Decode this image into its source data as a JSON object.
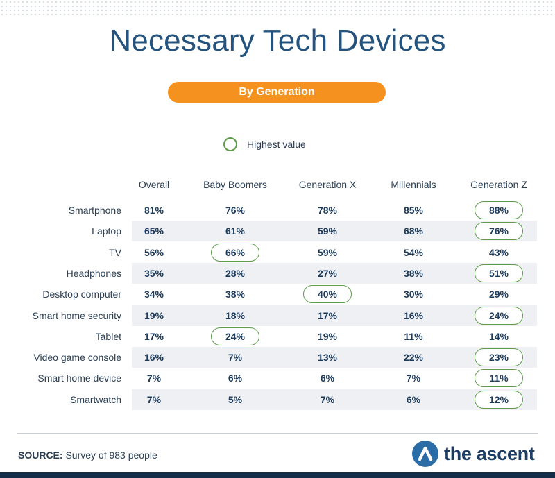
{
  "title": "Necessary Tech Devices",
  "subtitle": "By Generation",
  "legend": {
    "label": "Highest value"
  },
  "colors": {
    "accent": "#f5921f",
    "title": "#24537e",
    "highlight_ring": "#5e9c4c",
    "row_shade": "#eef0f4",
    "bottom_bar": "#142d49",
    "logo": "#2a6ca6"
  },
  "chart_data": {
    "type": "table",
    "title": "Necessary Tech Devices",
    "subtitle": "By Generation",
    "columns": [
      "Overall",
      "Baby Boomers",
      "Generation X",
      "Millennials",
      "Generation Z"
    ],
    "rows": [
      {
        "label": "Smartphone",
        "values": [
          "81%",
          "76%",
          "78%",
          "85%",
          "88%"
        ],
        "highlight": 4
      },
      {
        "label": "Laptop",
        "values": [
          "65%",
          "61%",
          "59%",
          "68%",
          "76%"
        ],
        "highlight": 4
      },
      {
        "label": "TV",
        "values": [
          "56%",
          "66%",
          "59%",
          "54%",
          "43%"
        ],
        "highlight": 1
      },
      {
        "label": "Headphones",
        "values": [
          "35%",
          "28%",
          "27%",
          "38%",
          "51%"
        ],
        "highlight": 4
      },
      {
        "label": "Desktop computer",
        "values": [
          "34%",
          "38%",
          "40%",
          "30%",
          "29%"
        ],
        "highlight": 2
      },
      {
        "label": "Smart home security",
        "values": [
          "19%",
          "18%",
          "17%",
          "16%",
          "24%"
        ],
        "highlight": 4
      },
      {
        "label": "Tablet",
        "values": [
          "17%",
          "24%",
          "19%",
          "11%",
          "14%"
        ],
        "highlight": 1
      },
      {
        "label": "Video game console",
        "values": [
          "16%",
          "7%",
          "13%",
          "22%",
          "23%"
        ],
        "highlight": 4
      },
      {
        "label": "Smart home device",
        "values": [
          "7%",
          "6%",
          "6%",
          "7%",
          "11%"
        ],
        "highlight": 4
      },
      {
        "label": "Smartwatch",
        "values": [
          "7%",
          "5%",
          "7%",
          "6%",
          "12%"
        ],
        "highlight": 4
      }
    ]
  },
  "footer": {
    "source_label": "SOURCE:",
    "source_text": "Survey of 983 people",
    "brand": "the ascent",
    "logo_icon": "ascent-logo-icon"
  }
}
